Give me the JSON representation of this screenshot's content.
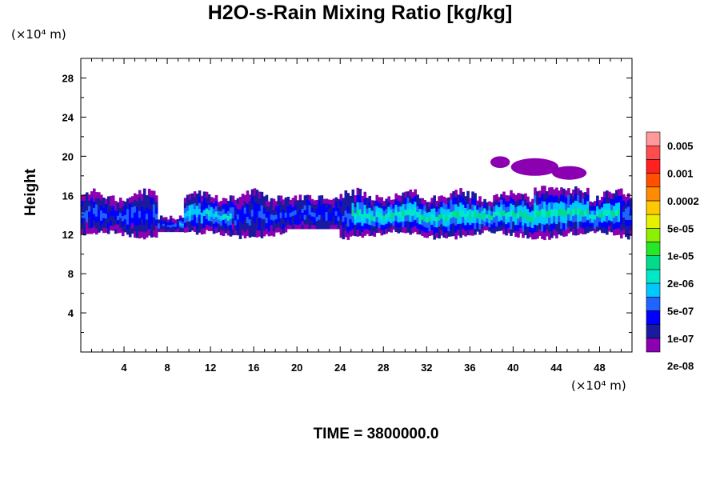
{
  "chart_data": {
    "type": "heatmap",
    "title": "H2O-s-Rain Mixing Ratio [kg/kg]",
    "xlabel": "",
    "ylabel": "Height",
    "x_unit": "(×10⁴ m)",
    "y_unit": "(×10⁴ m)",
    "x_ticks": [
      "4",
      "8",
      "12",
      "16",
      "20",
      "24",
      "28",
      "32",
      "36",
      "40",
      "44",
      "48"
    ],
    "y_ticks": [
      "4",
      "8",
      "12",
      "16",
      "20",
      "24",
      "28"
    ],
    "xlim": [
      0,
      51
    ],
    "ylim": [
      0,
      30
    ],
    "colorbar": {
      "labels": [
        "0.005",
        "0.001",
        "0.0002",
        "5e-05",
        "1e-05",
        "2e-06",
        "5e-07",
        "1e-07",
        "2e-08"
      ],
      "colors": [
        "#8b00b0",
        "#1a1aa0",
        "#0000ff",
        "#1e64ff",
        "#00c8ff",
        "#00e8c8",
        "#00dc8c",
        "#28e628",
        "#8cf000",
        "#e6f000",
        "#ffc800",
        "#ff8c00",
        "#ff5000",
        "#ff2020",
        "#ff4d4d",
        "#ff9a9a"
      ]
    },
    "cloud_band": {
      "base_height": 12,
      "top_height": 16
    }
  },
  "time_label": "TIME = 3800000.0"
}
